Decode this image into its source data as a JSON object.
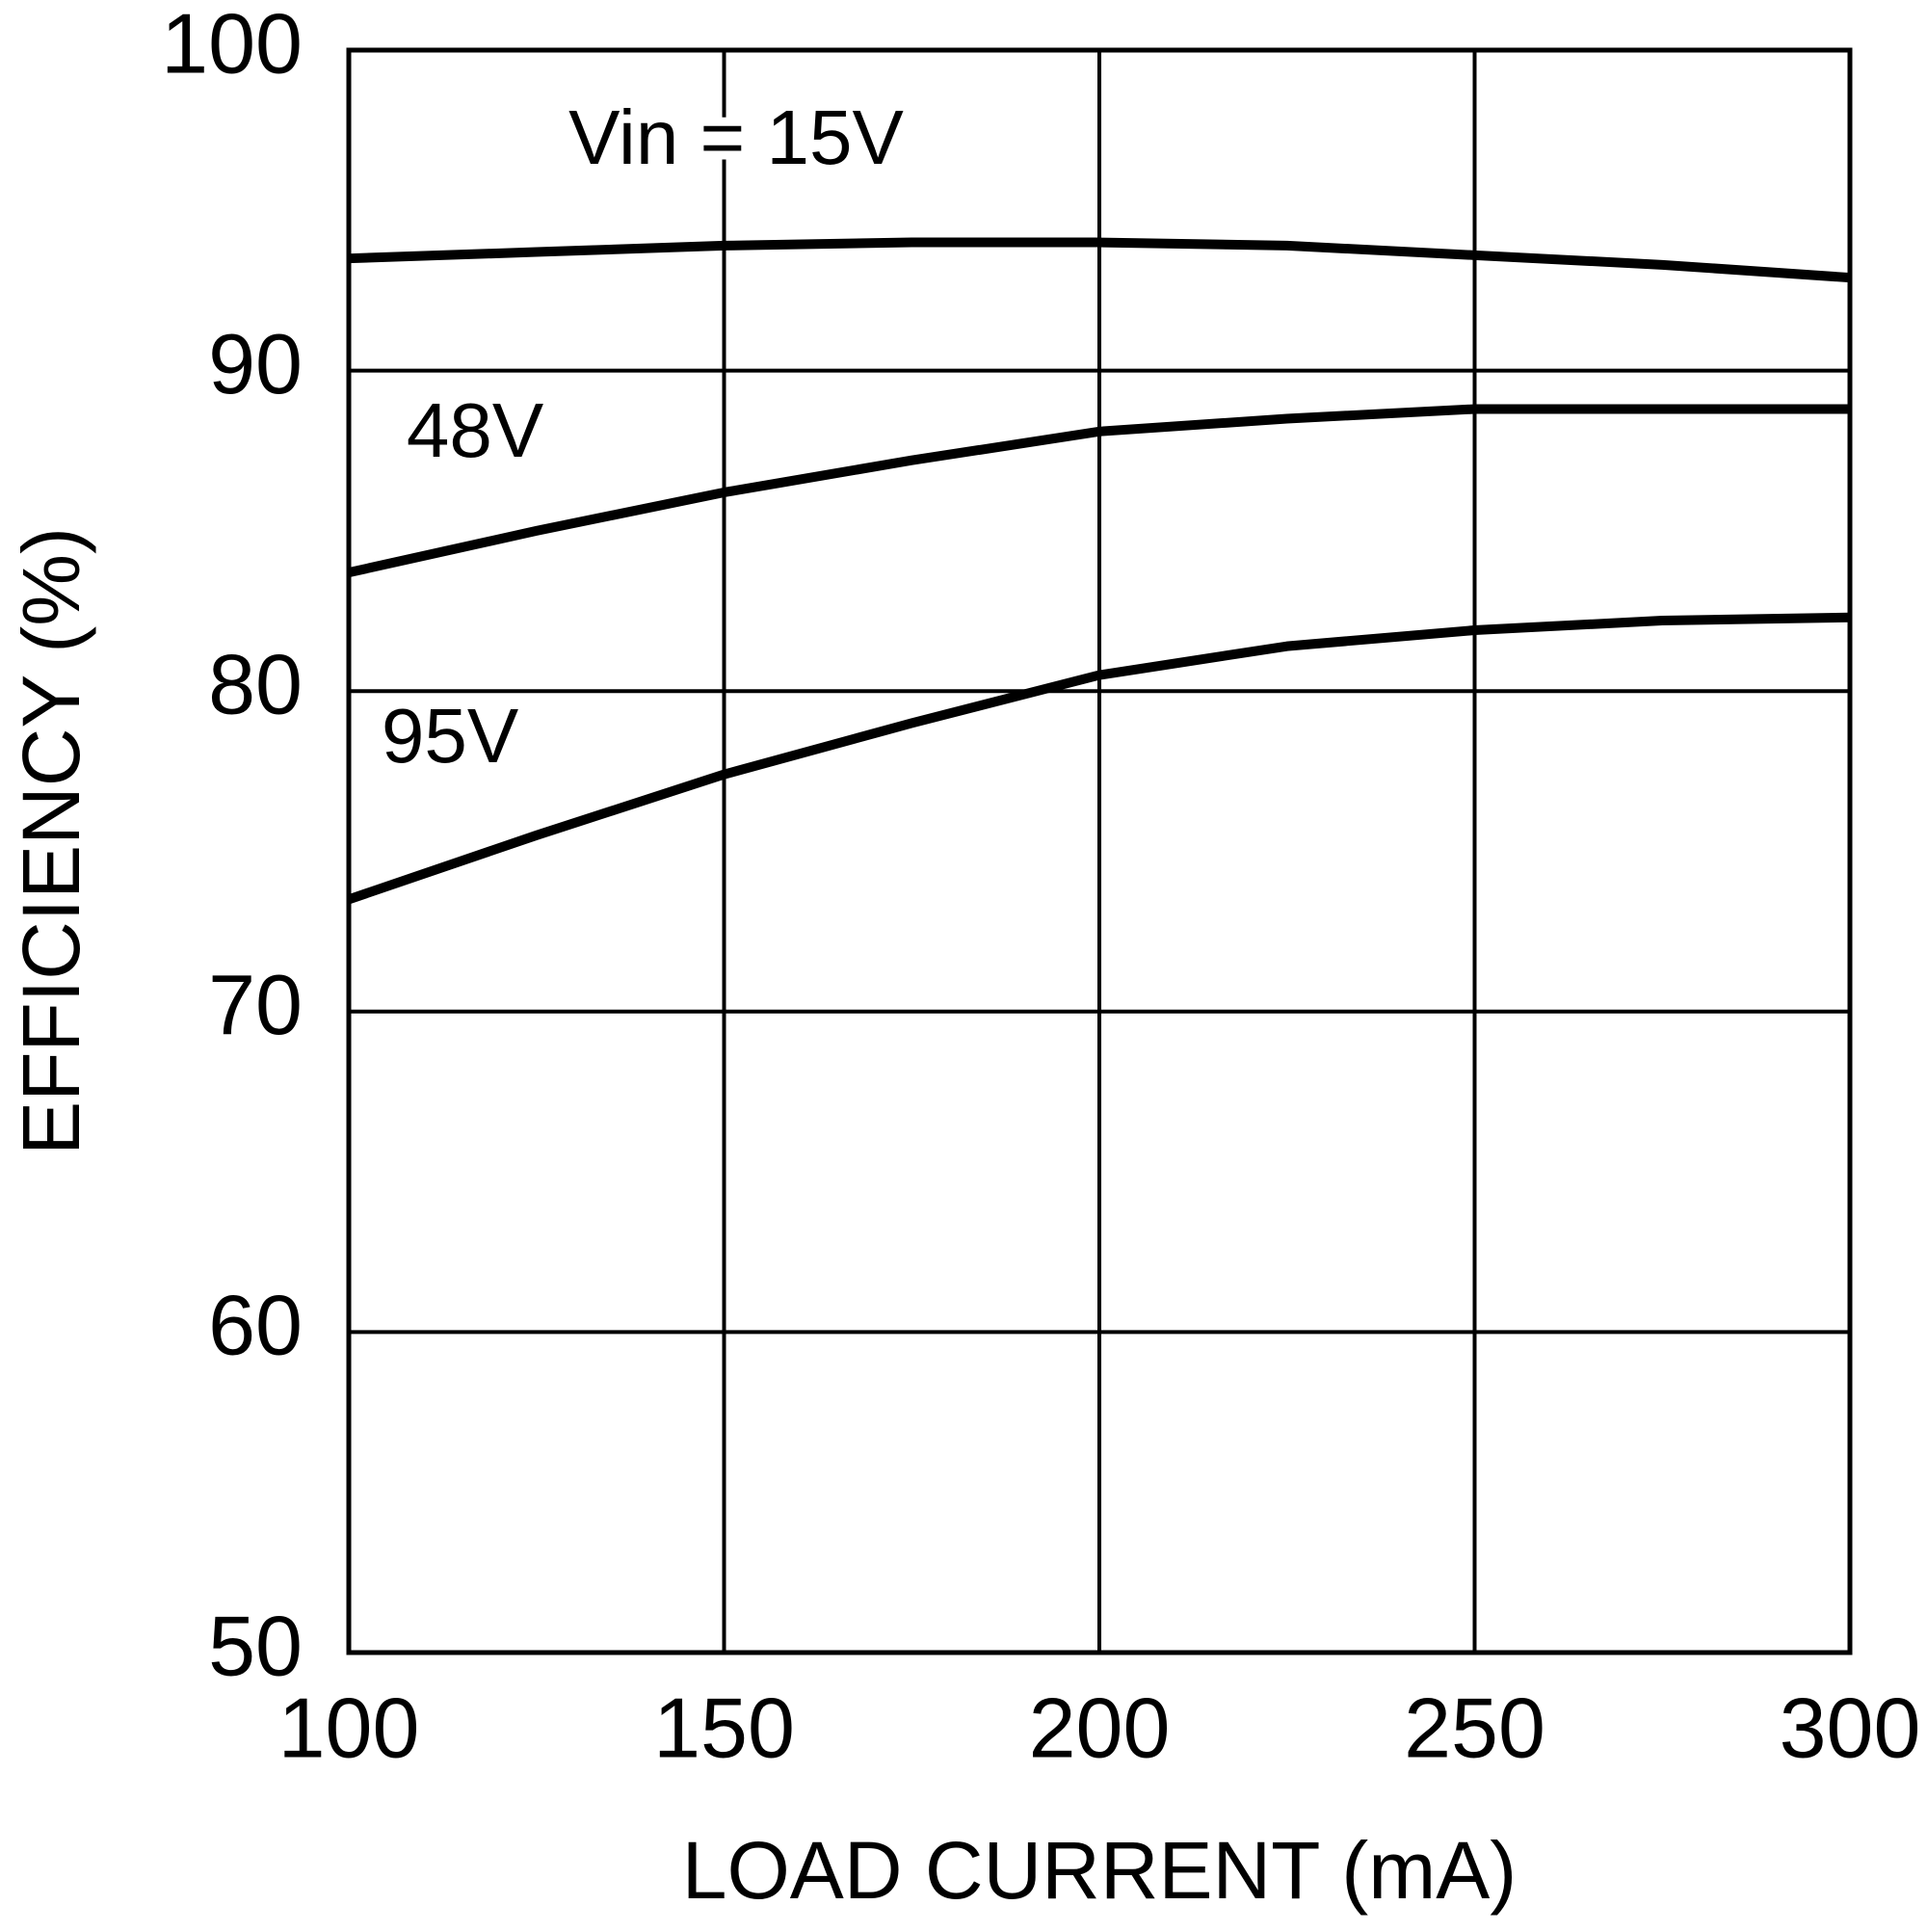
{
  "chart_data": {
    "type": "line",
    "x_label": "LOAD CURRENT (mA)",
    "y_label": "EFFICIENCY (%)",
    "x": [
      100,
      125,
      150,
      175,
      200,
      225,
      250,
      275,
      300
    ],
    "series": [
      {
        "name": "Vin = 15V",
        "color": "#000000",
        "values": [
          93.5,
          93.7,
          93.9,
          94.0,
          94.0,
          93.9,
          93.6,
          93.3,
          92.9
        ]
      },
      {
        "name": "48V",
        "color": "#000000",
        "values": [
          83.7,
          85.0,
          86.2,
          87.2,
          88.1,
          88.5,
          88.8,
          88.8,
          88.8
        ]
      },
      {
        "name": "95V",
        "color": "#000000",
        "values": [
          73.5,
          75.5,
          77.4,
          79.0,
          80.5,
          81.4,
          81.9,
          82.2,
          82.3
        ]
      }
    ],
    "xlim": [
      100,
      300
    ],
    "xticks": [
      100,
      150,
      200,
      250,
      300
    ],
    "ylim": [
      50,
      100
    ],
    "yticks": [
      50,
      60,
      70,
      80,
      90,
      100
    ],
    "grid": true
  }
}
